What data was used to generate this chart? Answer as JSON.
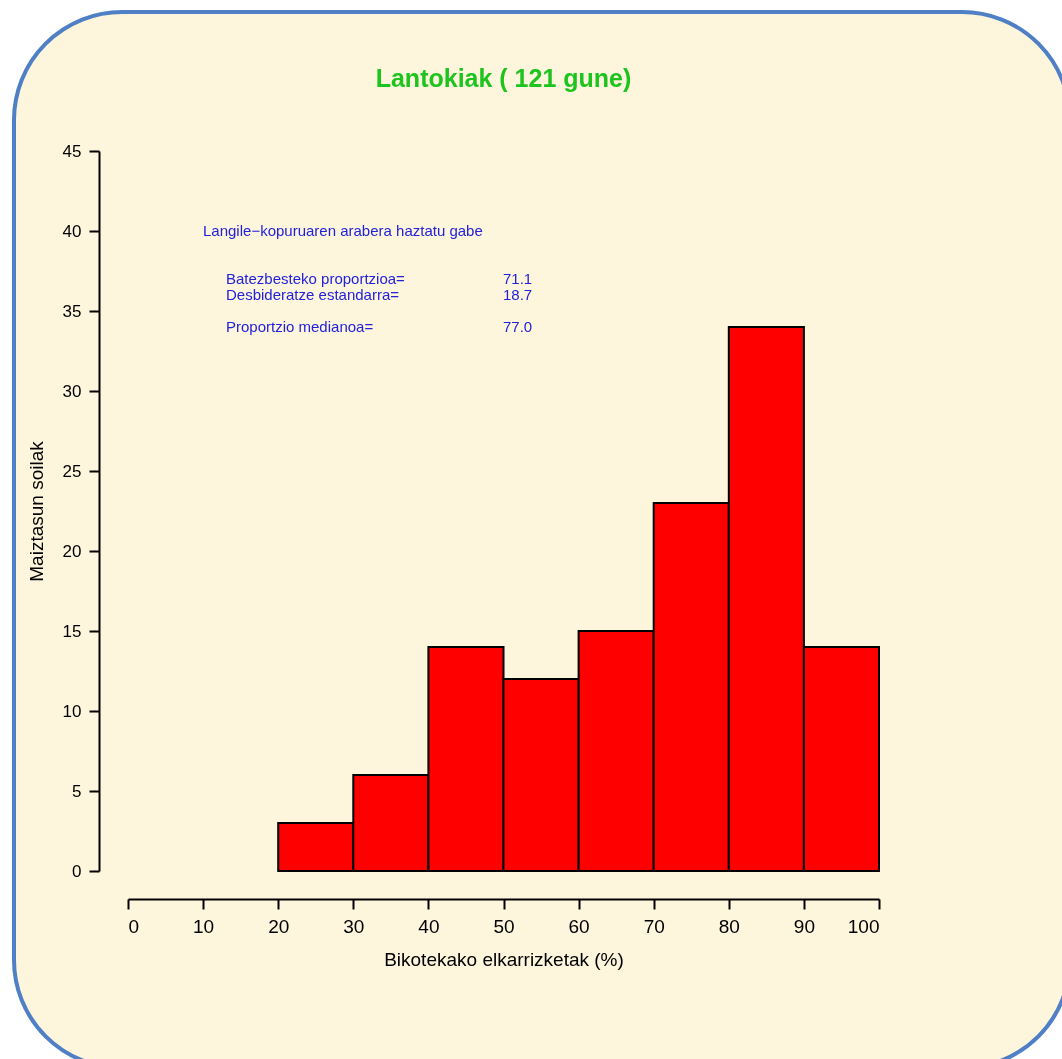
{
  "chart_data": {
    "type": "histogram",
    "title": "Lantokiak ( 121  gune)",
    "xlabel": "Bikotekako elkarrizketak (%)",
    "ylabel": "Maiztasun soilak",
    "bins": [
      20,
      30,
      40,
      50,
      60,
      70,
      80,
      90,
      100
    ],
    "values": [
      3,
      6,
      14,
      12,
      15,
      23,
      34,
      14
    ],
    "color": "#ff0000",
    "xlim": [
      0,
      100
    ],
    "xticks": [
      0,
      10,
      20,
      30,
      40,
      50,
      60,
      70,
      80,
      90,
      100
    ],
    "ylim": [
      0,
      45
    ],
    "yticks": [
      0,
      5,
      10,
      15,
      20,
      25,
      30,
      35,
      40,
      45
    ],
    "grid": false,
    "annotations": [
      "Langile−kopuruaren arabera haztatu gabe",
      "Batezbesteko proportzioa=",
      "71.1",
      "Desbideratze estandarra=",
      "18.7",
      "Proportzio medianoa=",
      "77.0"
    ]
  }
}
